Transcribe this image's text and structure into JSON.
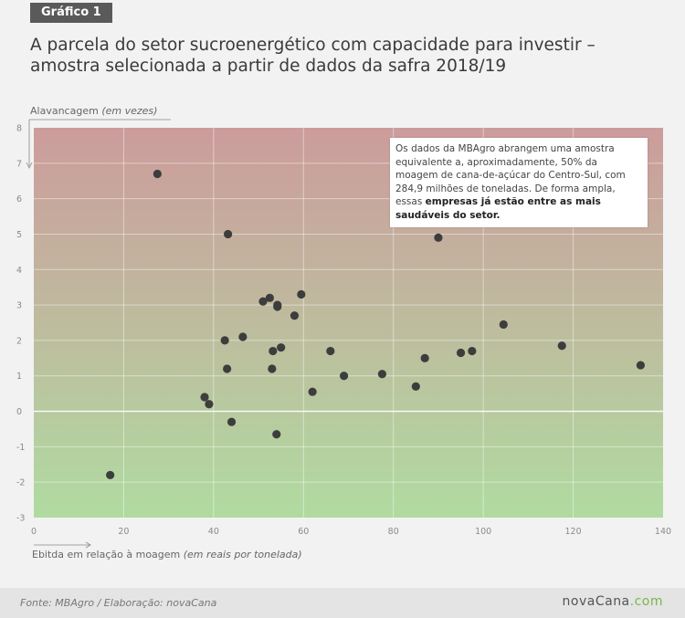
{
  "badge": "Gráfico 1",
  "title": "A parcela do setor sucroenergético com capacidade para investir – amostra selecionada a partir de dados da safra 2018/19",
  "annotation": {
    "text": "Os dados da MBAgro abrangem uma amostra equivalente a, aproximadamente, 50% da moagem de cana-de-açúcar do Centro-Sul, com 284,9 milhões de toneladas. De forma ampla, essas ",
    "bold": "empresas já estão entre as mais saudáveis do setor."
  },
  "footer": {
    "source": "Fonte: MBAgro / Elaboração: novaCana",
    "logo_main": "novaCana",
    "logo_suffix": ".com"
  },
  "colors": {
    "top": "#cc9c9c",
    "bottom": "#b0dba0",
    "point": "#3d3d3d"
  },
  "chart_data": {
    "type": "scatter",
    "ylabel_main": "Alavancagem",
    "ylabel_unit": "(em vezes)",
    "xlabel_main": "Ebitda em relação à moagem",
    "xlabel_unit": "(em reais por tonelada)",
    "xlim": [
      0,
      140
    ],
    "ylim": [
      -3,
      8
    ],
    "xticks": [
      0,
      20,
      40,
      60,
      80,
      100,
      120,
      140
    ],
    "yticks": [
      -3,
      -2,
      -1,
      0,
      1,
      2,
      3,
      4,
      5,
      6,
      7,
      8
    ],
    "grid": true,
    "points": [
      [
        17,
        -1.8
      ],
      [
        27.5,
        6.7
      ],
      [
        38,
        0.4
      ],
      [
        39,
        0.2
      ],
      [
        42.5,
        2.0
      ],
      [
        43,
        1.2
      ],
      [
        43.2,
        5.0
      ],
      [
        44,
        -0.3
      ],
      [
        46.5,
        2.1
      ],
      [
        51,
        3.1
      ],
      [
        52.5,
        3.2
      ],
      [
        53,
        1.2
      ],
      [
        53.2,
        1.7
      ],
      [
        54,
        -0.65
      ],
      [
        54.2,
        2.95
      ],
      [
        54.2,
        3.0
      ],
      [
        55,
        1.8
      ],
      [
        58,
        2.7
      ],
      [
        59.5,
        3.3
      ],
      [
        62,
        0.55
      ],
      [
        66,
        1.7
      ],
      [
        69,
        1.0
      ],
      [
        77.5,
        1.05
      ],
      [
        85,
        0.7
      ],
      [
        87,
        1.5
      ],
      [
        90,
        4.9
      ],
      [
        95,
        1.65
      ],
      [
        97.5,
        1.7
      ],
      [
        104.5,
        2.45
      ],
      [
        117.5,
        1.85
      ],
      [
        135,
        1.3
      ]
    ]
  }
}
